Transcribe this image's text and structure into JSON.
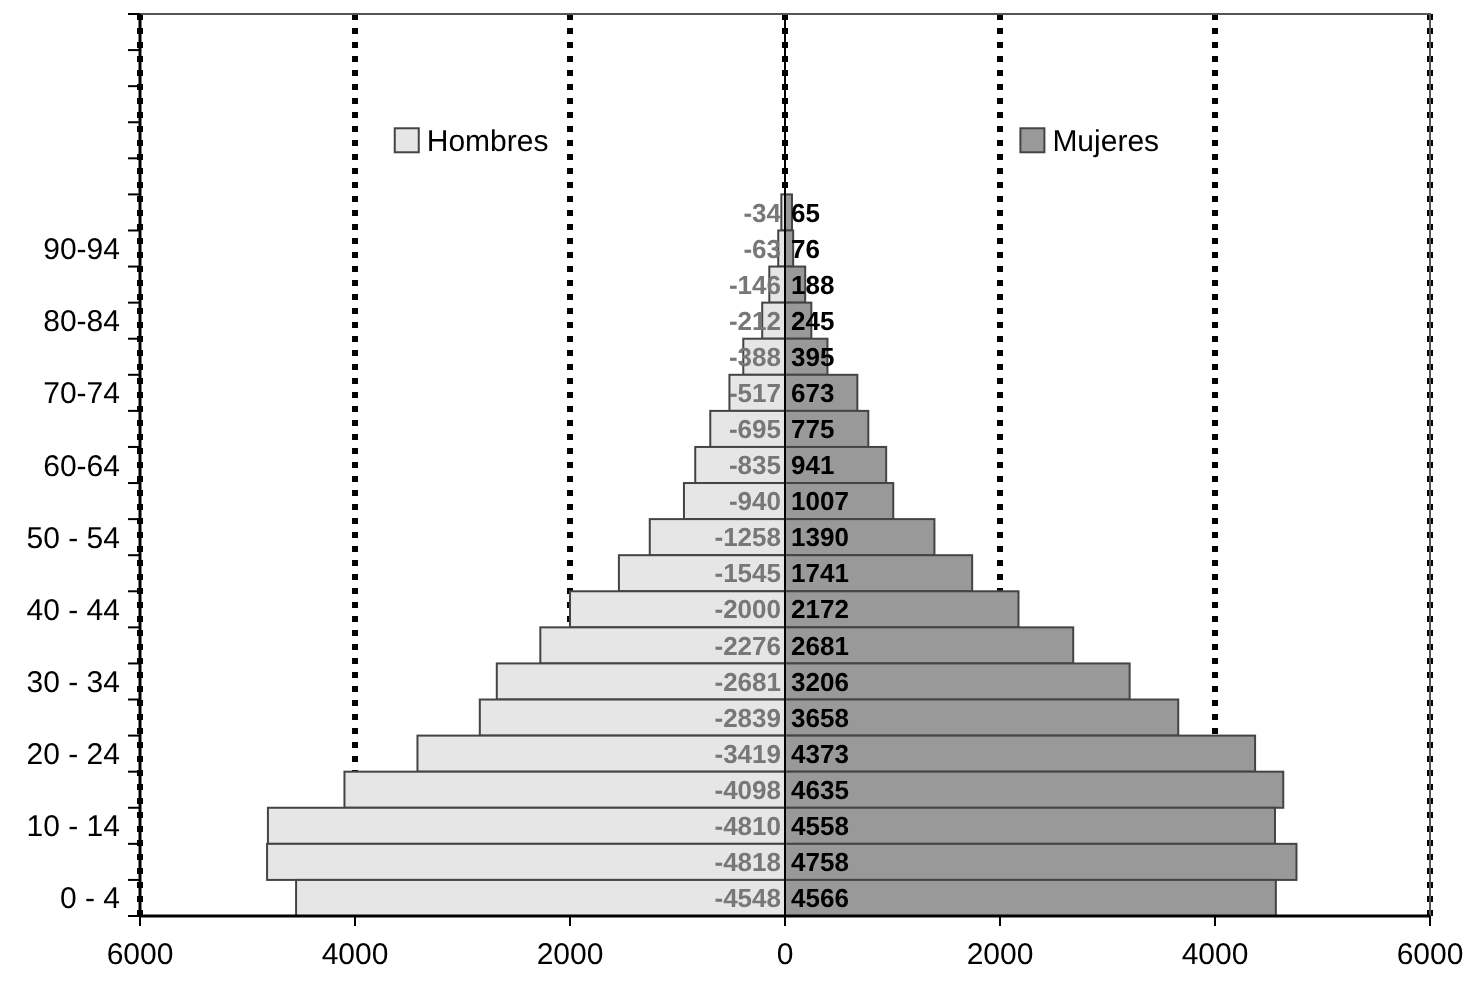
{
  "chart_data": {
    "type": "bar",
    "orientation": "horizontal",
    "stacked": true,
    "data_labels": true,
    "grid": "x",
    "legend": "top",
    "line_style": "dotted",
    "categories": [
      null,
      null,
      null,
      null,
      null,
      null,
      "90-94",
      null,
      "80-84",
      null,
      "70-74",
      null,
      "60-64",
      null,
      "50 - 54",
      null,
      "40 - 44",
      null,
      "30 - 34",
      null,
      "20 - 24",
      null,
      "10 - 14",
      null,
      "0 - 4"
    ],
    "xlim": [
      -6000,
      6000
    ],
    "xticks": [
      {
        "value": -6000,
        "label": "6000"
      },
      {
        "value": -4000,
        "label": "4000"
      },
      {
        "value": -2000,
        "label": "2000"
      },
      0,
      2000,
      4000,
      6000
    ],
    "series": [
      {
        "name": "Hombres",
        "color": "#e6e6e6",
        "values": [
          null,
          null,
          null,
          null,
          null,
          -34,
          -63,
          -146,
          -212,
          -388,
          -517,
          -695,
          -835,
          -940,
          -1258,
          -1545,
          -2000,
          -2276,
          -2681,
          -2839,
          -3419,
          -4098,
          -4810,
          -4818,
          -4548
        ]
      },
      {
        "name": "Mujeres",
        "color": "#999999",
        "values": [
          null,
          null,
          null,
          null,
          null,
          65,
          76,
          188,
          245,
          395,
          673,
          775,
          941,
          1007,
          1390,
          1741,
          2172,
          2681,
          3206,
          3658,
          4373,
          4635,
          4558,
          4758,
          4566
        ]
      }
    ]
  }
}
